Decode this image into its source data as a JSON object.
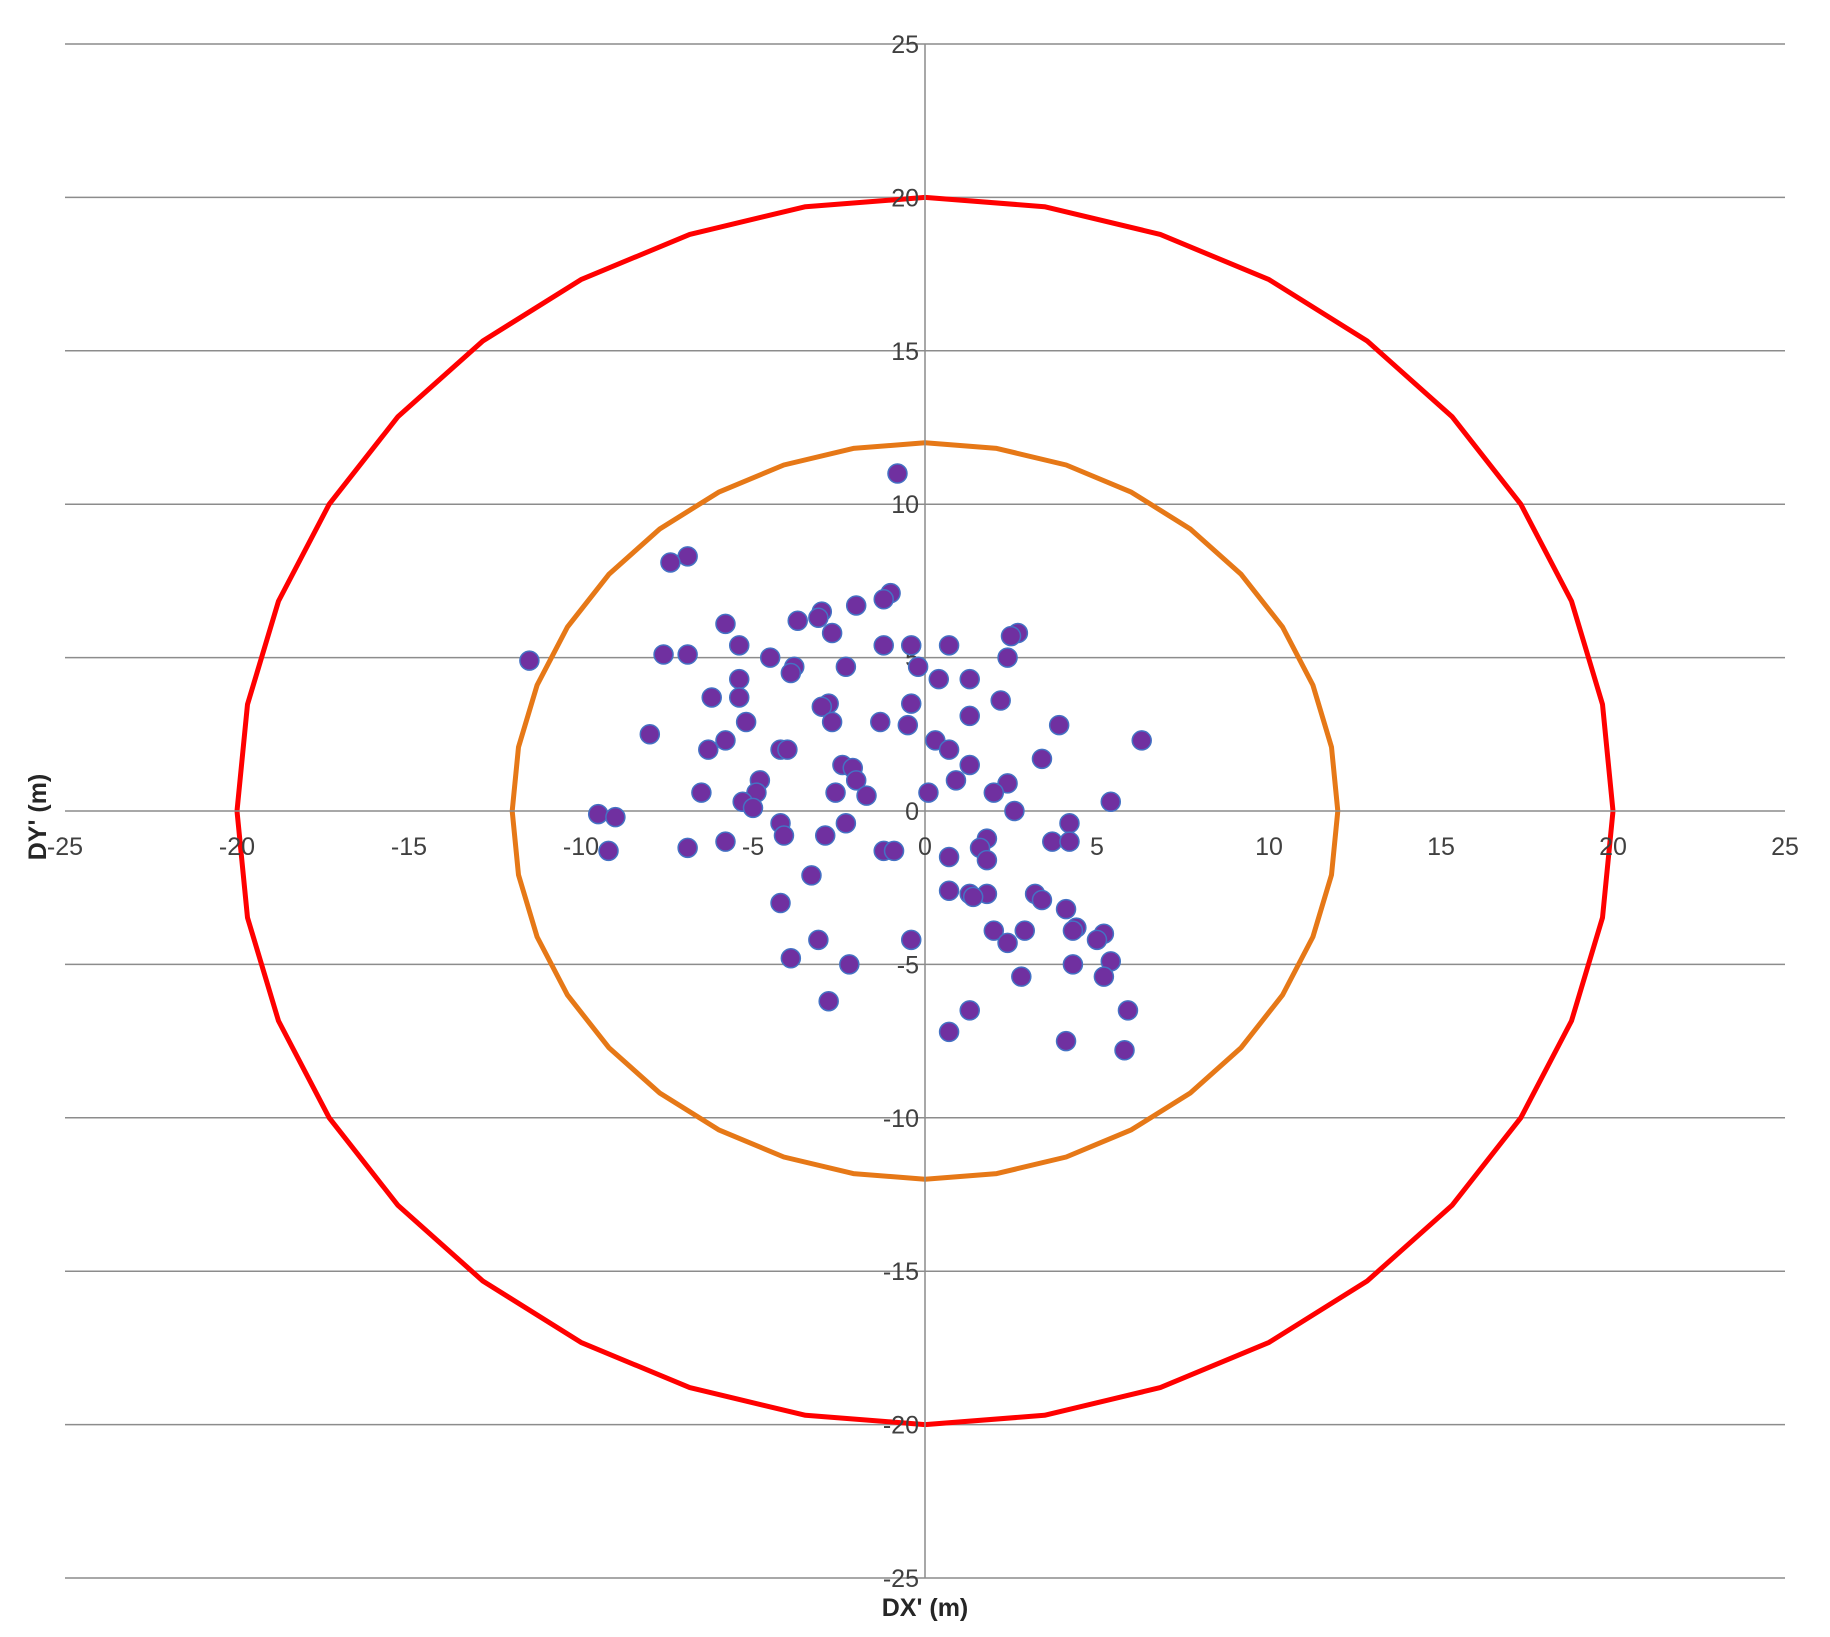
{
  "chart_data": {
    "type": "scatter",
    "title": "",
    "xlabel": "DX' (m)",
    "ylabel": "DY' (m)",
    "xlim": [
      -25,
      25
    ],
    "ylim": [
      -25,
      25
    ],
    "x_ticks": [
      -25,
      -20,
      -15,
      -10,
      -5,
      0,
      5,
      10,
      15,
      20,
      25
    ],
    "y_ticks": [
      -25,
      -20,
      -15,
      -10,
      -5,
      0,
      5,
      10,
      15,
      20,
      25
    ],
    "grid": "horizontal",
    "legend": "none",
    "circles": [
      {
        "radius": 20,
        "color": "#ff0000"
      },
      {
        "radius": 12,
        "color": "#e67817"
      }
    ],
    "marker_color": "#7030a0",
    "marker_edge_color": "#4472c4",
    "points": [
      [
        -0.8,
        11.0
      ],
      [
        -6.9,
        8.3
      ],
      [
        -7.4,
        8.1
      ],
      [
        -1.0,
        7.1
      ],
      [
        -1.2,
        6.9
      ],
      [
        -2.0,
        6.7
      ],
      [
        -3.0,
        6.5
      ],
      [
        -3.1,
        6.3
      ],
      [
        -3.7,
        6.2
      ],
      [
        -5.8,
        6.1
      ],
      [
        -2.7,
        5.8
      ],
      [
        2.7,
        5.8
      ],
      [
        2.5,
        5.7
      ],
      [
        -5.4,
        5.4
      ],
      [
        -1.2,
        5.4
      ],
      [
        -0.4,
        5.4
      ],
      [
        0.7,
        5.4
      ],
      [
        -7.6,
        5.1
      ],
      [
        -6.9,
        5.1
      ],
      [
        -11.5,
        4.9
      ],
      [
        -4.5,
        5.0
      ],
      [
        2.4,
        5.0
      ],
      [
        -0.2,
        4.7
      ],
      [
        -3.8,
        4.7
      ],
      [
        -2.3,
        4.7
      ],
      [
        -3.9,
        4.5
      ],
      [
        -5.4,
        4.3
      ],
      [
        0.4,
        4.3
      ],
      [
        1.3,
        4.3
      ],
      [
        -6.2,
        3.7
      ],
      [
        -5.4,
        3.7
      ],
      [
        2.2,
        3.6
      ],
      [
        -2.8,
        3.5
      ],
      [
        -3.0,
        3.4
      ],
      [
        -0.4,
        3.5
      ],
      [
        -5.2,
        2.9
      ],
      [
        -1.3,
        2.9
      ],
      [
        -2.7,
        2.9
      ],
      [
        -0.5,
        2.8
      ],
      [
        1.3,
        3.1
      ],
      [
        3.9,
        2.8
      ],
      [
        -8.0,
        2.5
      ],
      [
        0.3,
        2.3
      ],
      [
        6.3,
        2.3
      ],
      [
        -5.8,
        2.3
      ],
      [
        -6.3,
        2.0
      ],
      [
        -4.2,
        2.0
      ],
      [
        -4.0,
        2.0
      ],
      [
        0.7,
        2.0
      ],
      [
        3.4,
        1.7
      ],
      [
        1.3,
        1.5
      ],
      [
        -2.4,
        1.5
      ],
      [
        -2.1,
        1.4
      ],
      [
        -2.0,
        1.0
      ],
      [
        -4.8,
        1.0
      ],
      [
        0.9,
        1.0
      ],
      [
        2.4,
        0.9
      ],
      [
        -6.5,
        0.6
      ],
      [
        -4.9,
        0.6
      ],
      [
        -2.6,
        0.6
      ],
      [
        -1.7,
        0.5
      ],
      [
        0.1,
        0.6
      ],
      [
        2.0,
        0.6
      ],
      [
        -5.3,
        0.3
      ],
      [
        5.4,
        0.3
      ],
      [
        -5.0,
        0.1
      ],
      [
        2.6,
        0.0
      ],
      [
        -9.5,
        -0.1
      ],
      [
        -9.0,
        -0.2
      ],
      [
        -4.2,
        -0.4
      ],
      [
        -2.3,
        -0.4
      ],
      [
        4.2,
        -0.4
      ],
      [
        -4.1,
        -0.8
      ],
      [
        -2.9,
        -0.8
      ],
      [
        1.8,
        -0.9
      ],
      [
        -5.8,
        -1.0
      ],
      [
        3.7,
        -1.0
      ],
      [
        4.2,
        -1.0
      ],
      [
        -6.9,
        -1.2
      ],
      [
        -9.2,
        -1.3
      ],
      [
        -1.2,
        -1.3
      ],
      [
        -0.9,
        -1.3
      ],
      [
        1.6,
        -1.2
      ],
      [
        0.7,
        -1.5
      ],
      [
        1.8,
        -1.6
      ],
      [
        -3.3,
        -2.1
      ],
      [
        0.7,
        -2.6
      ],
      [
        1.3,
        -2.7
      ],
      [
        1.8,
        -2.7
      ],
      [
        3.2,
        -2.7
      ],
      [
        1.4,
        -2.8
      ],
      [
        3.4,
        -2.9
      ],
      [
        -4.2,
        -3.0
      ],
      [
        4.1,
        -3.2
      ],
      [
        4.4,
        -3.8
      ],
      [
        4.3,
        -3.9
      ],
      [
        2.0,
        -3.9
      ],
      [
        2.9,
        -3.9
      ],
      [
        5.2,
        -4.0
      ],
      [
        5.0,
        -4.2
      ],
      [
        -0.4,
        -4.2
      ],
      [
        -3.1,
        -4.2
      ],
      [
        2.4,
        -4.3
      ],
      [
        -3.9,
        -4.8
      ],
      [
        -2.2,
        -5.0
      ],
      [
        4.3,
        -5.0
      ],
      [
        5.4,
        -4.9
      ],
      [
        2.8,
        -5.4
      ],
      [
        5.2,
        -5.4
      ],
      [
        -2.8,
        -6.2
      ],
      [
        1.3,
        -6.5
      ],
      [
        5.9,
        -6.5
      ],
      [
        0.7,
        -7.2
      ],
      [
        4.1,
        -7.5
      ],
      [
        5.8,
        -7.8
      ]
    ]
  }
}
